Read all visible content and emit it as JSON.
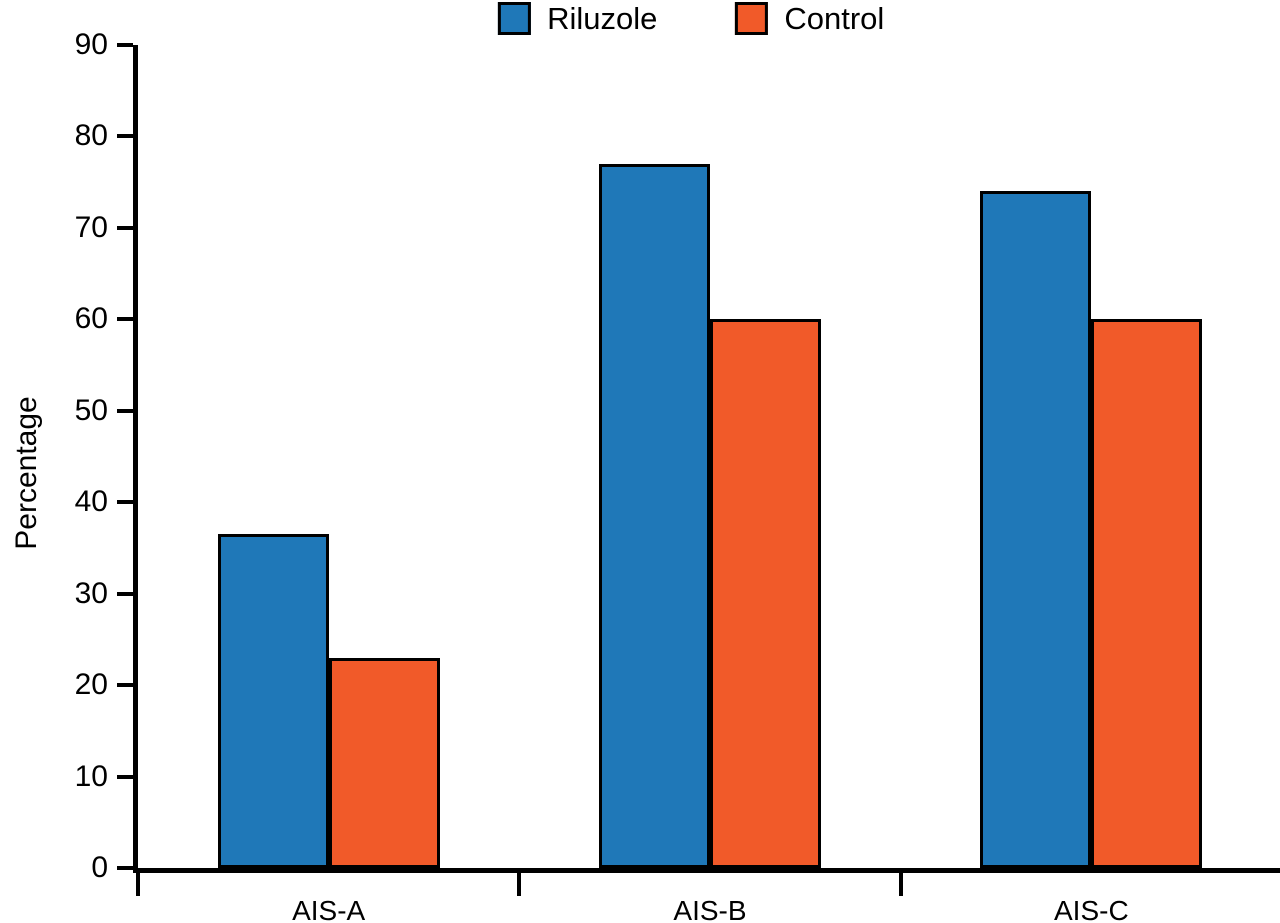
{
  "chart_data": {
    "type": "bar",
    "categories": [
      "AIS-A",
      "AIS-B",
      "AIS-C"
    ],
    "series": [
      {
        "name": "Riluzole",
        "color": "#1f78b8",
        "values": [
          36.5,
          77,
          74
        ]
      },
      {
        "name": "Control",
        "color": "#f15a29",
        "values": [
          23,
          60,
          60
        ]
      }
    ],
    "title": "",
    "xlabel": "",
    "ylabel": "Percentage",
    "ylim": [
      0,
      90
    ],
    "ytick_step": 10,
    "grid": false,
    "legend_position": "top",
    "bar_edge_color": "#000000"
  }
}
